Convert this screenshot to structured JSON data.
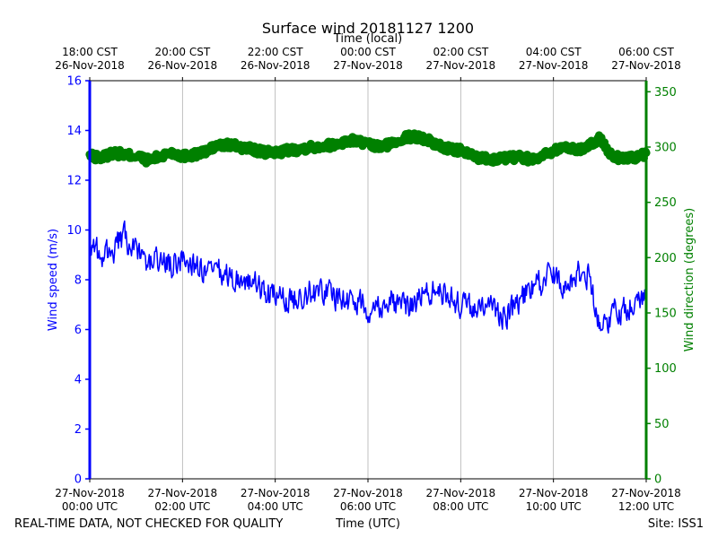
{
  "chart_data": {
    "type": "line",
    "title": "Surface wind 20181127 1200",
    "top_axis_label": "Time (local)",
    "top_ticks": [
      {
        "t": 0,
        "line1": "18:00 CST",
        "line2": "26-Nov-2018"
      },
      {
        "t": 2,
        "line1": "20:00 CST",
        "line2": "26-Nov-2018"
      },
      {
        "t": 4,
        "line1": "22:00 CST",
        "line2": "26-Nov-2018"
      },
      {
        "t": 6,
        "line1": "00:00 CST",
        "line2": "27-Nov-2018"
      },
      {
        "t": 8,
        "line1": "02:00 CST",
        "line2": "27-Nov-2018"
      },
      {
        "t": 10,
        "line1": "04:00 CST",
        "line2": "27-Nov-2018"
      },
      {
        "t": 12,
        "line1": "06:00 CST",
        "line2": "27-Nov-2018"
      }
    ],
    "bottom_ticks": [
      {
        "t": 0,
        "line1": "27-Nov-2018",
        "line2": "00:00 UTC"
      },
      {
        "t": 2,
        "line1": "27-Nov-2018",
        "line2": "02:00 UTC"
      },
      {
        "t": 4,
        "line1": "27-Nov-2018",
        "line2": "04:00 UTC"
      },
      {
        "t": 6,
        "line1": "27-Nov-2018",
        "line2": "06:00 UTC"
      },
      {
        "t": 8,
        "line1": "27-Nov-2018",
        "line2": "08:00 UTC"
      },
      {
        "t": 10,
        "line1": "27-Nov-2018",
        "line2": "10:00 UTC"
      },
      {
        "t": 12,
        "line1": "27-Nov-2018",
        "line2": "12:00 UTC"
      }
    ],
    "xlim": [
      0,
      12
    ],
    "xunit": "hours since 2018-11-27 00:00 UTC",
    "left_axis": {
      "label": "Wind speed (m/s)",
      "ylim": [
        0,
        16
      ],
      "ticks": [
        0,
        2,
        4,
        6,
        8,
        10,
        12,
        14,
        16
      ],
      "color": "#0000ff"
    },
    "right_axis": {
      "label": "Wind direction (degrees)",
      "ylim": [
        0,
        360
      ],
      "ticks": [
        0,
        50,
        100,
        150,
        200,
        250,
        300,
        350
      ],
      "color": "#008000"
    },
    "grid": "vertical",
    "footer_left": "REAL-TIME DATA, NOT CHECKED FOR QUALITY",
    "footer_center": "Time (UTC)",
    "footer_right": "Site: ISS1",
    "series": [
      {
        "name": "Wind speed",
        "axis": "left",
        "style": "line",
        "color": "#0000ff",
        "x": [
          0,
          0.25,
          0.5,
          0.75,
          1,
          1.25,
          1.5,
          1.75,
          2,
          2.25,
          2.5,
          2.75,
          3,
          3.25,
          3.5,
          3.75,
          4,
          4.25,
          4.5,
          4.75,
          5,
          5.25,
          5.5,
          5.75,
          6,
          6.25,
          6.5,
          6.75,
          7,
          7.25,
          7.5,
          7.75,
          8,
          8.25,
          8.5,
          8.75,
          9,
          9.25,
          9.5,
          9.75,
          10,
          10.25,
          10.5,
          10.75,
          11,
          11.25,
          11.5,
          11.75,
          12
        ],
        "values": [
          9.5,
          8.9,
          9.2,
          9.7,
          9.0,
          8.7,
          8.8,
          8.5,
          8.9,
          8.6,
          8.2,
          8.3,
          8.1,
          8.0,
          7.9,
          7.5,
          7.3,
          7.1,
          7.4,
          7.5,
          7.6,
          7.4,
          7.2,
          7.1,
          6.9,
          7.0,
          7.2,
          6.9,
          7.1,
          7.5,
          7.6,
          7.3,
          7.0,
          6.8,
          7.0,
          6.7,
          6.6,
          7.2,
          7.6,
          7.9,
          8.2,
          7.8,
          8.3,
          8.2,
          6.2,
          6.6,
          6.9,
          7.1,
          7.4
        ],
        "noise": 0.75,
        "n_points": 720
      },
      {
        "name": "Wind direction",
        "axis": "right",
        "style": "markers",
        "color": "#008000",
        "x": [
          0,
          0.25,
          0.5,
          0.75,
          1,
          1.25,
          1.5,
          1.75,
          2,
          2.25,
          2.5,
          2.75,
          3,
          3.25,
          3.5,
          3.75,
          4,
          4.25,
          4.5,
          4.75,
          5,
          5.25,
          5.5,
          5.75,
          6,
          6.25,
          6.5,
          6.75,
          7,
          7.25,
          7.5,
          7.75,
          8,
          8.25,
          8.5,
          8.75,
          9,
          9.25,
          9.5,
          9.75,
          10,
          10.25,
          10.5,
          10.75,
          11,
          11.25,
          11.5,
          11.75,
          12
        ],
        "values": [
          292,
          290,
          295,
          293,
          292,
          288,
          291,
          295,
          292,
          293,
          296,
          301,
          302,
          300,
          298,
          295,
          295,
          297,
          298,
          300,
          301,
          302,
          305,
          306,
          302,
          300,
          303,
          308,
          310,
          307,
          302,
          298,
          297,
          292,
          290,
          289,
          290,
          291,
          289,
          292,
          297,
          300,
          298,
          300,
          308,
          292,
          290,
          291,
          293
        ],
        "noise": 3.5,
        "n_points": 720
      }
    ]
  }
}
